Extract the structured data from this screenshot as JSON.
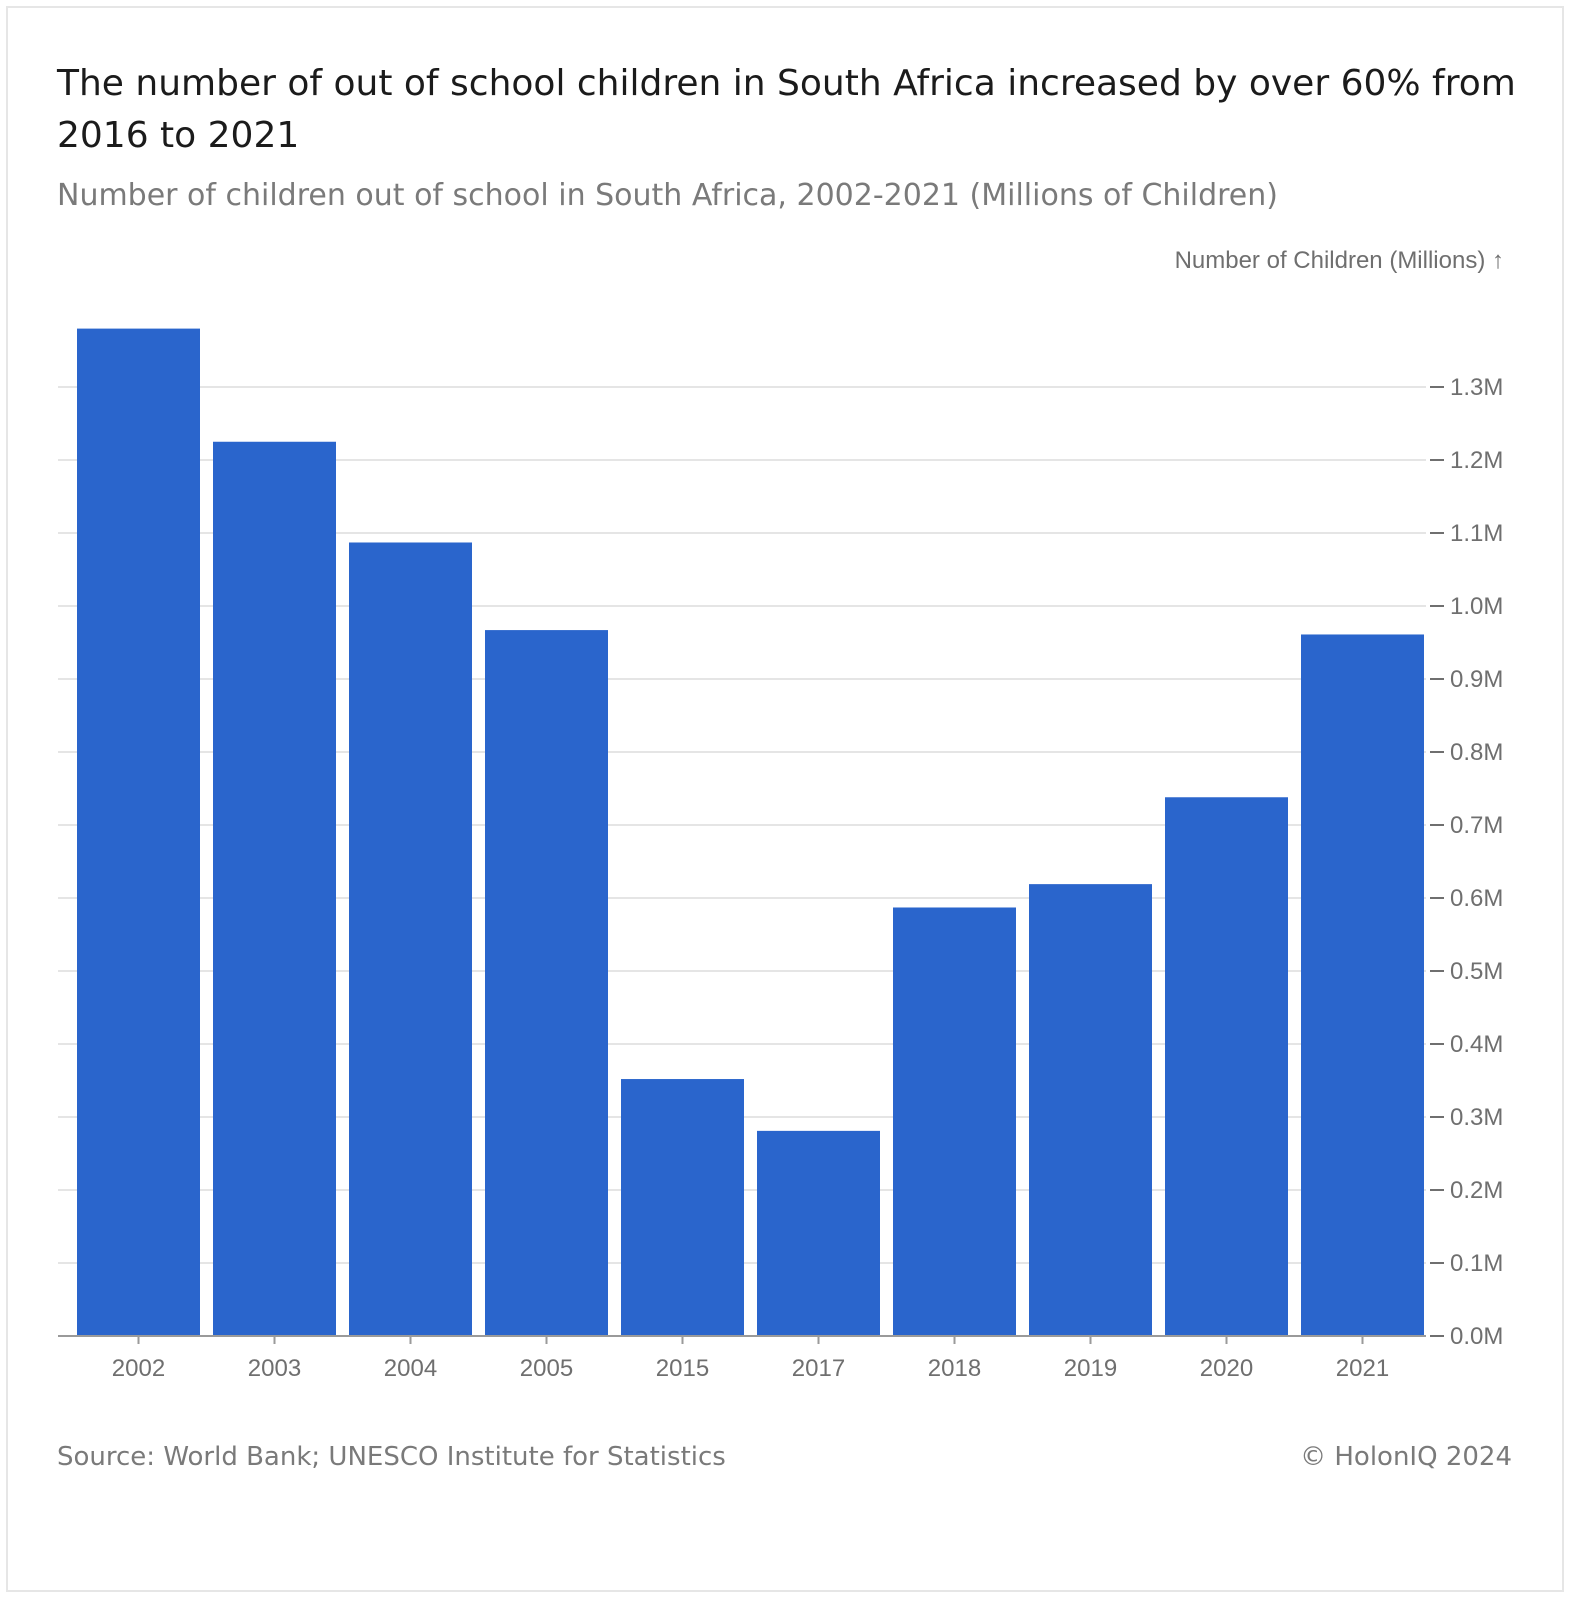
{
  "title": "The number of out of school children in South Africa increased by over 60% from 2016 to 2021",
  "subtitle": "Number of children out of school in South Africa, 2002-2021 (Millions of Children)",
  "footer": {
    "source": "Source: World Bank; UNESCO Institute for Statistics",
    "copyright": "© HolonIQ 2024"
  },
  "colors": {
    "bar": "#2a65cc",
    "grid": "#e5e5e5",
    "axis": "#9a9a9a"
  },
  "chart_data": {
    "type": "bar",
    "title": "The number of out of school children in South Africa increased by over 60% from 2016 to 2021",
    "subtitle": "Number of children out of school in South Africa, 2002-2021 (Millions of Children)",
    "xlabel": "",
    "ylabel": "Number of Children (Millions) ↑",
    "categories": [
      "2002",
      "2003",
      "2004",
      "2005",
      "2015",
      "2017",
      "2018",
      "2019",
      "2020",
      "2021"
    ],
    "values": [
      1.38,
      1.225,
      1.087,
      0.967,
      0.352,
      0.281,
      0.587,
      0.619,
      0.738,
      0.961
    ],
    "ylim": [
      0,
      1.4
    ],
    "yticks": [
      0.0,
      0.1,
      0.2,
      0.3,
      0.4,
      0.5,
      0.6,
      0.7,
      0.8,
      0.9,
      1.0,
      1.1,
      1.2,
      1.3
    ],
    "ytick_labels": [
      "0.0M",
      "0.1M",
      "0.2M",
      "0.3M",
      "0.4M",
      "0.5M",
      "0.6M",
      "0.7M",
      "0.8M",
      "0.9M",
      "1.0M",
      "1.1M",
      "1.2M",
      "1.3M"
    ],
    "y_axis_side": "right",
    "grid": true,
    "legend": "none"
  }
}
